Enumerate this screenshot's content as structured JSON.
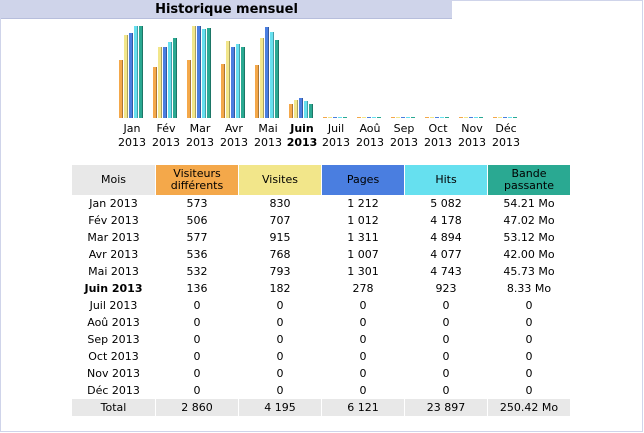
{
  "title": "Historique mensuel",
  "colors": {
    "visitors": "#f4a84a",
    "visits": "#f2e68a",
    "pages": "#4a7ee0",
    "hits": "#66e0ef",
    "bandwidth": "#2aa992",
    "header_month": "#e8e8e8"
  },
  "chart_data": {
    "type": "bar",
    "categories": [
      "Jan 2013",
      "Fév 2013",
      "Mar 2013",
      "Avr 2013",
      "Mai 2013",
      "Juin 2013",
      "Juil 2013",
      "Aoû 2013",
      "Sep 2013",
      "Oct 2013",
      "Nov 2013",
      "Déc 2013"
    ],
    "month_labels": [
      {
        "month": "Jan",
        "year": "2013"
      },
      {
        "month": "Fév",
        "year": "2013"
      },
      {
        "month": "Mar",
        "year": "2013"
      },
      {
        "month": "Avr",
        "year": "2013"
      },
      {
        "month": "Mai",
        "year": "2013"
      },
      {
        "month": "Juin",
        "year": "2013"
      },
      {
        "month": "Juil",
        "year": "2013"
      },
      {
        "month": "Aoû",
        "year": "2013"
      },
      {
        "month": "Sep",
        "year": "2013"
      },
      {
        "month": "Oct",
        "year": "2013"
      },
      {
        "month": "Nov",
        "year": "2013"
      },
      {
        "month": "Déc",
        "year": "2013"
      }
    ],
    "current_month_index": 5,
    "series": [
      {
        "name": "Visiteurs différents",
        "values": [
          573,
          506,
          577,
          536,
          532,
          136,
          0,
          0,
          0,
          0,
          0,
          0
        ]
      },
      {
        "name": "Visites",
        "values": [
          830,
          707,
          915,
          768,
          793,
          182,
          0,
          0,
          0,
          0,
          0,
          0
        ]
      },
      {
        "name": "Pages",
        "values": [
          1212,
          1012,
          1311,
          1007,
          1301,
          278,
          0,
          0,
          0,
          0,
          0,
          0
        ]
      },
      {
        "name": "Hits",
        "values": [
          5082,
          4178,
          4894,
          4077,
          4743,
          923,
          0,
          0,
          0,
          0,
          0,
          0
        ]
      },
      {
        "name": "Bande passante",
        "values": [
          54.21,
          47.02,
          53.12,
          42.0,
          45.73,
          8.33,
          0,
          0,
          0,
          0,
          0,
          0
        ]
      }
    ]
  },
  "table": {
    "headers": {
      "month": "Mois",
      "visitors": "Visiteurs différents",
      "visits": "Visites",
      "pages": "Pages",
      "hits": "Hits",
      "bandwidth": "Bande passante"
    },
    "rows": [
      {
        "month": "Jan 2013",
        "visitors": "573",
        "visits": "830",
        "pages": "1 212",
        "hits": "5 082",
        "bandwidth": "54.21 Mo"
      },
      {
        "month": "Fév 2013",
        "visitors": "506",
        "visits": "707",
        "pages": "1 012",
        "hits": "4 178",
        "bandwidth": "47.02 Mo"
      },
      {
        "month": "Mar 2013",
        "visitors": "577",
        "visits": "915",
        "pages": "1 311",
        "hits": "4 894",
        "bandwidth": "53.12 Mo"
      },
      {
        "month": "Avr 2013",
        "visitors": "536",
        "visits": "768",
        "pages": "1 007",
        "hits": "4 077",
        "bandwidth": "42.00 Mo"
      },
      {
        "month": "Mai 2013",
        "visitors": "532",
        "visits": "793",
        "pages": "1 301",
        "hits": "4 743",
        "bandwidth": "45.73 Mo"
      },
      {
        "month": "Juin 2013",
        "visitors": "136",
        "visits": "182",
        "pages": "278",
        "hits": "923",
        "bandwidth": "8.33 Mo",
        "current": true
      },
      {
        "month": "Juil 2013",
        "visitors": "0",
        "visits": "0",
        "pages": "0",
        "hits": "0",
        "bandwidth": "0"
      },
      {
        "month": "Aoû 2013",
        "visitors": "0",
        "visits": "0",
        "pages": "0",
        "hits": "0",
        "bandwidth": "0"
      },
      {
        "month": "Sep 2013",
        "visitors": "0",
        "visits": "0",
        "pages": "0",
        "hits": "0",
        "bandwidth": "0"
      },
      {
        "month": "Oct 2013",
        "visitors": "0",
        "visits": "0",
        "pages": "0",
        "hits": "0",
        "bandwidth": "0"
      },
      {
        "month": "Nov 2013",
        "visitors": "0",
        "visits": "0",
        "pages": "0",
        "hits": "0",
        "bandwidth": "0"
      },
      {
        "month": "Déc 2013",
        "visitors": "0",
        "visits": "0",
        "pages": "0",
        "hits": "0",
        "bandwidth": "0"
      }
    ],
    "total": {
      "label": "Total",
      "visitors": "2 860",
      "visits": "4 195",
      "pages": "6 121",
      "hits": "23 897",
      "bandwidth": "250.42 Mo"
    }
  }
}
